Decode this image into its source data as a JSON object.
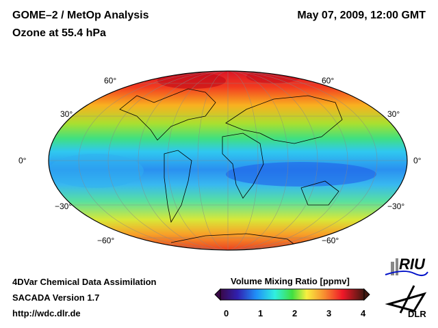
{
  "header": {
    "title": "GOME–2 / MetOp Analysis",
    "subtitle": "Ozone at 55.4 hPa",
    "datetime": "May 07, 2009, 12:00 GMT"
  },
  "map": {
    "lat_labels_left": [
      "60°",
      "30°",
      "0°",
      "−30°",
      "−60°"
    ],
    "lat_labels_right": [
      "60°",
      "30°",
      "0°",
      "−30°",
      "−60°"
    ]
  },
  "footer": {
    "line1": "4DVar Chemical Data Assimilation",
    "line2": "SACADA Version 1.7",
    "line3": "http://wdc.dlr.de"
  },
  "colorbar": {
    "title": "Volume Mixing Ratio [ppmv]",
    "ticks": [
      "0",
      "1",
      "2",
      "3",
      "4"
    ],
    "min": 0,
    "max": 4
  },
  "logos": {
    "riu": "RIU",
    "dlr": "DLR"
  }
}
